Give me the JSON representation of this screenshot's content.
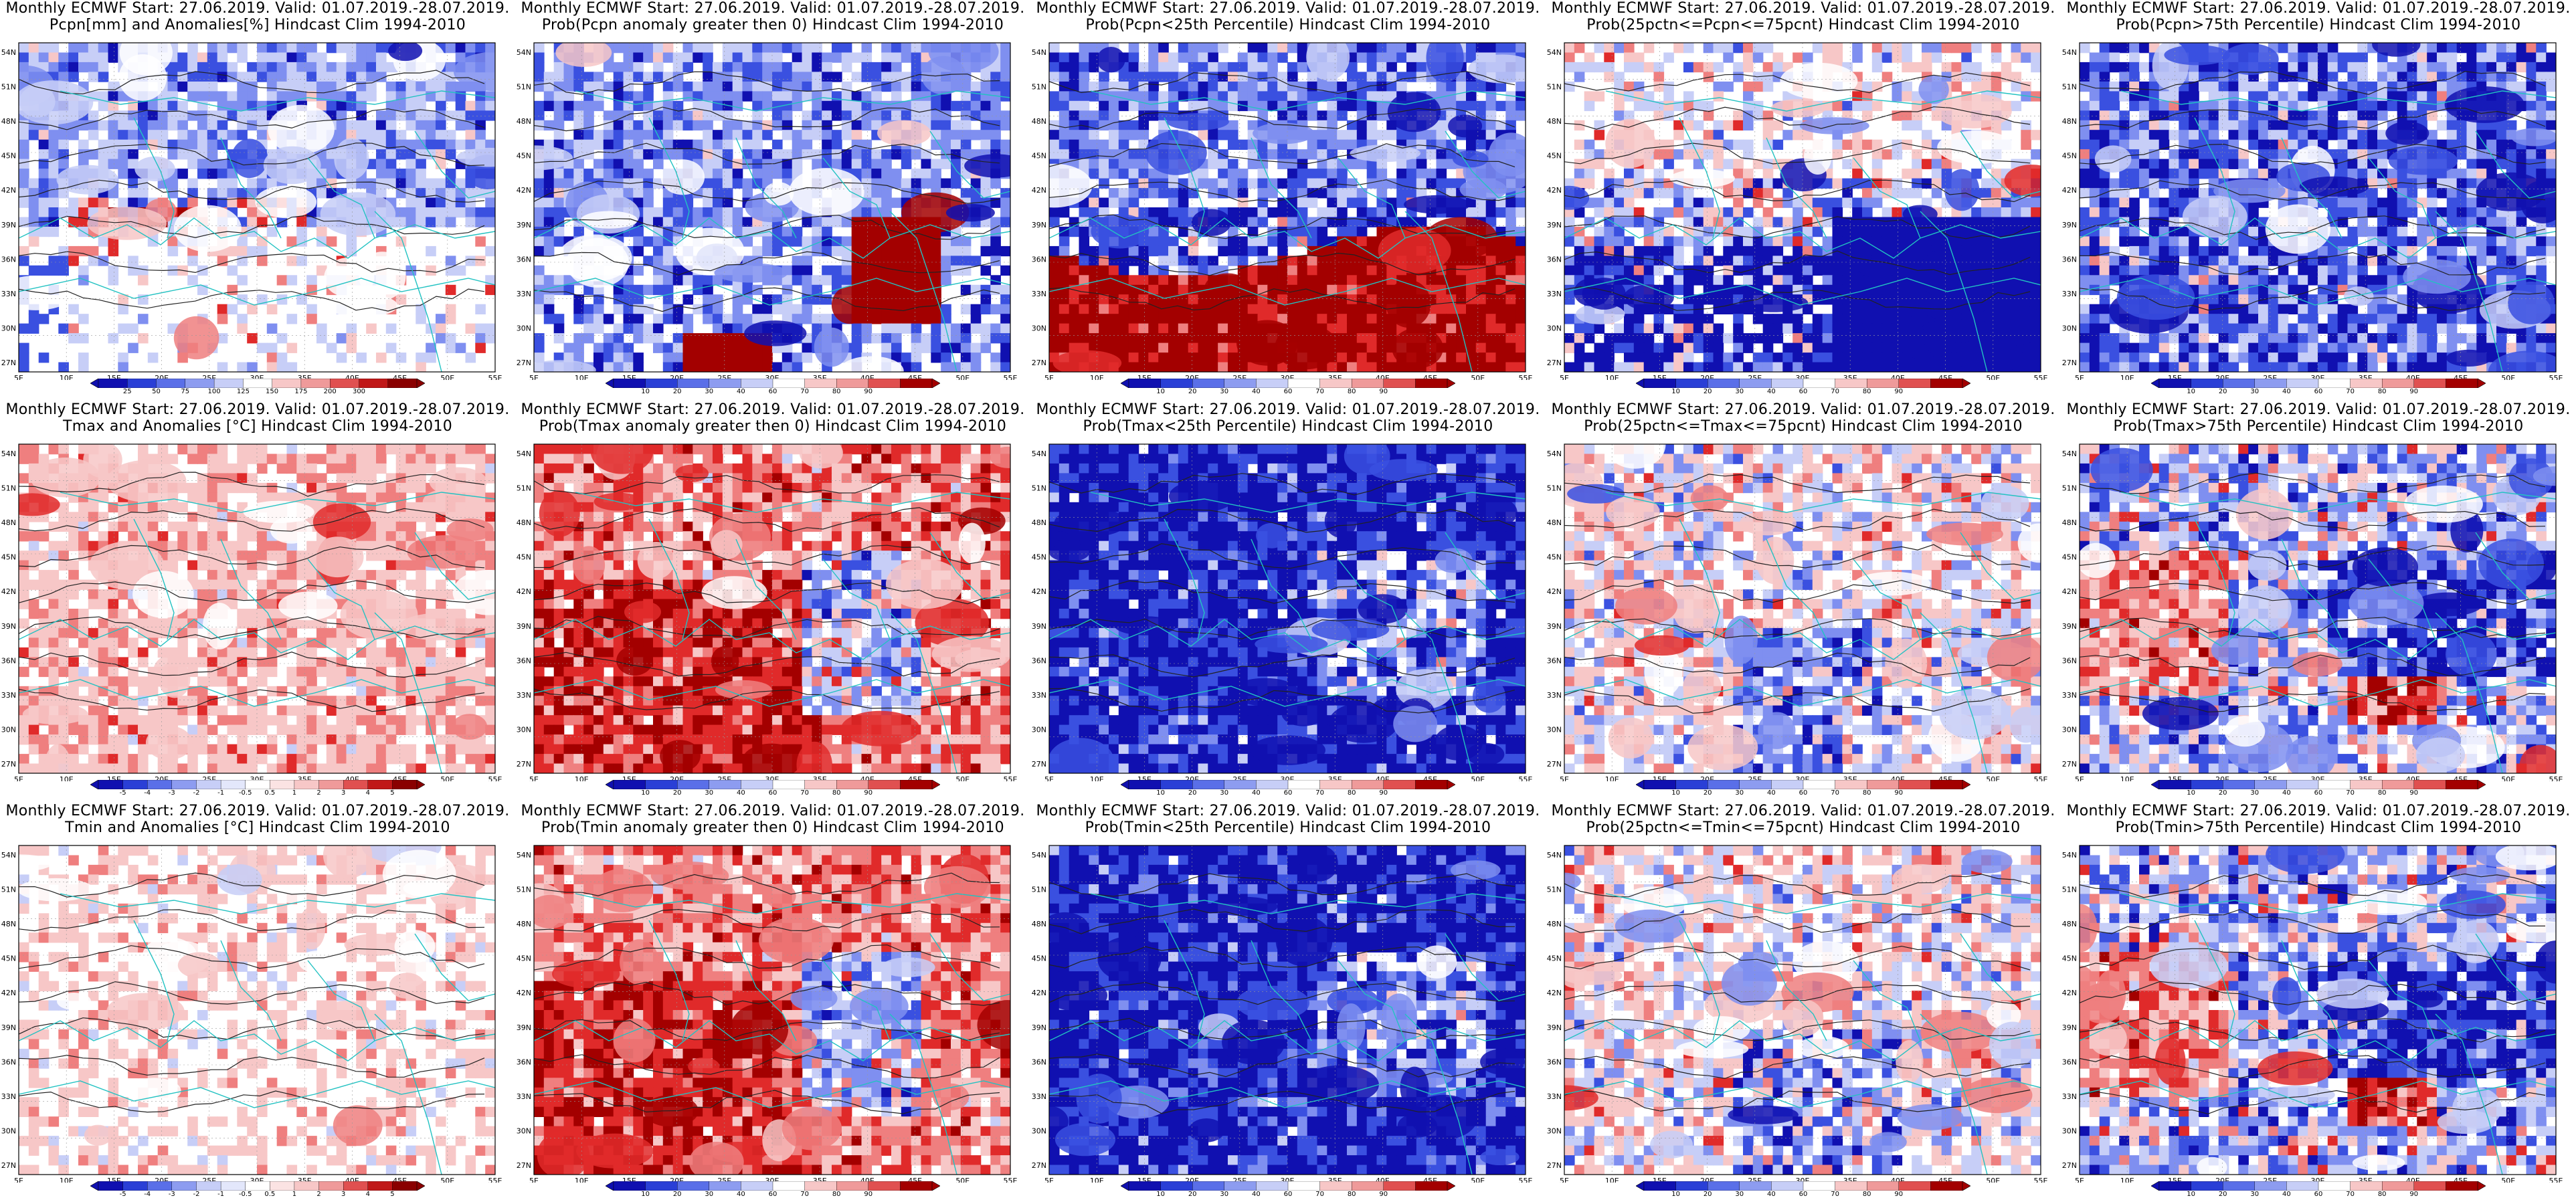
{
  "figure": {
    "columns": 5,
    "rows": 3,
    "lat_labels": [
      "54N",
      "51N",
      "48N",
      "45N",
      "42N",
      "39N",
      "36N",
      "33N",
      "30N",
      "27N"
    ],
    "lon_labels": [
      "5E",
      "10E",
      "15E",
      "20E",
      "25E",
      "30E",
      "35E",
      "40E",
      "45E",
      "50E",
      "55E"
    ],
    "colors": {
      "deep_blue": "#1010b0",
      "blue": "#3a50e0",
      "mid_blue": "#7f8ff0",
      "light_blue": "#c7cef7",
      "white": "#ffffff",
      "light_red": "#f7c7c7",
      "mid_red": "#ef7f7f",
      "red": "#e02a2a",
      "dark_red": "#a30000",
      "coast": "#22c2c2",
      "contour": "#222222"
    }
  },
  "panels": [
    {
      "title1": "Monthly ECMWF Start: 27.06.2019. Valid: 01.07.2019.-28.07.2019.",
      "title2": "Pcpn[mm] and Anomalies[%] Hindcast Clim 1994-2010",
      "colorbar": {
        "ticks": [
          "25",
          "50",
          "75",
          "100",
          "125",
          "150",
          "175",
          "200",
          "300"
        ],
        "colors": [
          "#1010b0",
          "#2a3fd6",
          "#5a6fe8",
          "#8d9cf0",
          "#c7cef7",
          "#ffffff",
          "#f7c7c7",
          "#ef9a9a",
          "#e05050",
          "#c01818",
          "#8a0000"
        ]
      },
      "pattern": "precip"
    },
    {
      "title1": "Monthly ECMWF Start: 27.06.2019. Valid: 01.07.2019.-28.07.2019.",
      "title2": "Prob(Pcpn anomaly greater then 0) Hindcast Clim 1994-2010",
      "colorbar": {
        "ticks": [
          "10",
          "20",
          "30",
          "40",
          "60",
          "70",
          "80",
          "90"
        ],
        "colors": [
          "#1010b0",
          "#2a3fd6",
          "#5a6fe8",
          "#8d9cf0",
          "#c7cef7",
          "#ffffff",
          "#f7c7c7",
          "#ef9a9a",
          "#e05050",
          "#a30000"
        ]
      },
      "pattern": "blue_dominant_redspot"
    },
    {
      "title1": "Monthly ECMWF Start: 27.06.2019. Valid: 01.07.2019.-28.07.2019.",
      "title2": "Prob(Pcpn<25th Percentile) Hindcast Clim 1994-2010",
      "colorbar": {
        "ticks": [
          "10",
          "20",
          "30",
          "40",
          "60",
          "70",
          "80",
          "90"
        ],
        "colors": [
          "#1010b0",
          "#2a3fd6",
          "#5a6fe8",
          "#8d9cf0",
          "#c7cef7",
          "#ffffff",
          "#f7c7c7",
          "#ef9a9a",
          "#e05050",
          "#a30000"
        ]
      },
      "pattern": "blue_top_red_bottom"
    },
    {
      "title1": "Monthly ECMWF Start: 27.06.2019. Valid: 01.07.2019.-28.07.2019.",
      "title2": "Prob(25pctn<=Pcpn<=75pcnt) Hindcast Clim 1994-2010",
      "colorbar": {
        "ticks": [
          "10",
          "20",
          "30",
          "40",
          "60",
          "70",
          "80",
          "90"
        ],
        "colors": [
          "#1010b0",
          "#2a3fd6",
          "#5a6fe8",
          "#8d9cf0",
          "#c7cef7",
          "#ffffff",
          "#f7c7c7",
          "#ef9a9a",
          "#e05050",
          "#a30000"
        ]
      },
      "pattern": "mixed_blue_bottom"
    },
    {
      "title1": "Monthly ECMWF Start: 27.06.2019. Valid: 01.07.2019.-28.07.2019.",
      "title2": "Prob(Pcpn>75th Percentile) Hindcast Clim 1994-2010",
      "colorbar": {
        "ticks": [
          "10",
          "20",
          "30",
          "40",
          "60",
          "70",
          "80",
          "90"
        ],
        "colors": [
          "#1010b0",
          "#2a3fd6",
          "#5a6fe8",
          "#8d9cf0",
          "#c7cef7",
          "#ffffff",
          "#f7c7c7",
          "#ef9a9a",
          "#e05050",
          "#a30000"
        ]
      },
      "pattern": "blue_dominant"
    },
    {
      "title1": "Monthly ECMWF Start: 27.06.2019. Valid: 01.07.2019.-28.07.2019.",
      "title2": "Tmax and Anomalies [°C] Hindcast Clim 1994-2010",
      "colorbar": {
        "ticks": [
          "-5",
          "-4",
          "-3",
          "-2",
          "-1",
          "-0.5",
          "0.5",
          "1",
          "2",
          "3",
          "4",
          "5"
        ],
        "colors": [
          "#1010b0",
          "#2a3fd6",
          "#5a6fe8",
          "#8d9cf0",
          "#c7cef7",
          "#e3e7fb",
          "#ffffff",
          "#fbe3e3",
          "#f7c7c7",
          "#ef9a9a",
          "#e05050",
          "#c01818",
          "#8a0000"
        ]
      },
      "pattern": "light_red"
    },
    {
      "title1": "Monthly ECMWF Start: 27.06.2019. Valid: 01.07.2019.-28.07.2019.",
      "title2": "Prob(Tmax anomaly greater then 0) Hindcast Clim 1994-2010",
      "colorbar": {
        "ticks": [
          "10",
          "20",
          "30",
          "40",
          "60",
          "70",
          "80",
          "90"
        ],
        "colors": [
          "#1010b0",
          "#2a3fd6",
          "#5a6fe8",
          "#8d9cf0",
          "#c7cef7",
          "#ffffff",
          "#f7c7c7",
          "#ef9a9a",
          "#e05050",
          "#a30000"
        ]
      },
      "pattern": "red_dominant"
    },
    {
      "title1": "Monthly ECMWF Start: 27.06.2019. Valid: 01.07.2019.-28.07.2019.",
      "title2": "Prob(Tmax<25th Percentile) Hindcast Clim 1994-2010",
      "colorbar": {
        "ticks": [
          "10",
          "20",
          "30",
          "40",
          "60",
          "70",
          "80",
          "90"
        ],
        "colors": [
          "#1010b0",
          "#2a3fd6",
          "#5a6fe8",
          "#8d9cf0",
          "#c7cef7",
          "#ffffff",
          "#f7c7c7",
          "#ef9a9a",
          "#e05050",
          "#a30000"
        ]
      },
      "pattern": "deep_blue"
    },
    {
      "title1": "Monthly ECMWF Start: 27.06.2019. Valid: 01.07.2019.-28.07.2019.",
      "title2": "Prob(25pctn<=Tmax<=75pcnt) Hindcast Clim 1994-2010",
      "colorbar": {
        "ticks": [
          "10",
          "20",
          "30",
          "40",
          "60",
          "70",
          "80",
          "90"
        ],
        "colors": [
          "#1010b0",
          "#2a3fd6",
          "#5a6fe8",
          "#8d9cf0",
          "#c7cef7",
          "#ffffff",
          "#f7c7c7",
          "#ef9a9a",
          "#e05050",
          "#a30000"
        ]
      },
      "pattern": "mixed"
    },
    {
      "title1": "Monthly ECMWF Start: 27.06.2019. Valid: 01.07.2019.-28.07.2019.",
      "title2": "Prob(Tmax>75th Percentile) Hindcast Clim 1994-2010",
      "colorbar": {
        "ticks": [
          "10",
          "20",
          "30",
          "40",
          "60",
          "70",
          "80",
          "90"
        ],
        "colors": [
          "#1010b0",
          "#2a3fd6",
          "#5a6fe8",
          "#8d9cf0",
          "#c7cef7",
          "#ffffff",
          "#f7c7c7",
          "#ef9a9a",
          "#e05050",
          "#a30000"
        ]
      },
      "pattern": "mixed_red_west"
    },
    {
      "title1": "Monthly ECMWF Start: 27.06.2019. Valid: 01.07.2019.-28.07.2019.",
      "title2": "Tmin and Anomalies [°C] Hindcast Clim 1994-2010",
      "colorbar": {
        "ticks": [
          "-5",
          "-4",
          "-3",
          "-2",
          "-1",
          "-0.5",
          "0.5",
          "1",
          "2",
          "3",
          "4",
          "5"
        ],
        "colors": [
          "#1010b0",
          "#2a3fd6",
          "#5a6fe8",
          "#8d9cf0",
          "#c7cef7",
          "#e3e7fb",
          "#ffffff",
          "#fbe3e3",
          "#f7c7c7",
          "#ef9a9a",
          "#e05050",
          "#c01818",
          "#8a0000"
        ]
      },
      "pattern": "very_light"
    },
    {
      "title1": "Monthly ECMWF Start: 27.06.2019. Valid: 01.07.2019.-28.07.2019.",
      "title2": "Prob(Tmin anomaly greater then 0) Hindcast Clim 1994-2010",
      "colorbar": {
        "ticks": [
          "10",
          "20",
          "30",
          "40",
          "60",
          "70",
          "80",
          "90"
        ],
        "colors": [
          "#1010b0",
          "#2a3fd6",
          "#5a6fe8",
          "#8d9cf0",
          "#c7cef7",
          "#ffffff",
          "#f7c7c7",
          "#ef9a9a",
          "#e05050",
          "#a30000"
        ]
      },
      "pattern": "red_dominant"
    },
    {
      "title1": "Monthly ECMWF Start: 27.06.2019. Valid: 01.07.2019.-28.07.2019.",
      "title2": "Prob(Tmin<25th Percentile) Hindcast Clim 1994-2010",
      "colorbar": {
        "ticks": [
          "10",
          "20",
          "30",
          "40",
          "60",
          "70",
          "80",
          "90"
        ],
        "colors": [
          "#1010b0",
          "#2a3fd6",
          "#5a6fe8",
          "#8d9cf0",
          "#c7cef7",
          "#ffffff",
          "#f7c7c7",
          "#ef9a9a",
          "#e05050",
          "#a30000"
        ]
      },
      "pattern": "deep_blue"
    },
    {
      "title1": "Monthly ECMWF Start: 27.06.2019. Valid: 01.07.2019.-28.07.2019.",
      "title2": "Prob(25pctn<=Tmin<=75pcnt) Hindcast Clim 1994-2010",
      "colorbar": {
        "ticks": [
          "10",
          "20",
          "30",
          "40",
          "60",
          "70",
          "80",
          "90"
        ],
        "colors": [
          "#1010b0",
          "#2a3fd6",
          "#5a6fe8",
          "#8d9cf0",
          "#c7cef7",
          "#ffffff",
          "#f7c7c7",
          "#ef9a9a",
          "#e05050",
          "#a30000"
        ]
      },
      "pattern": "mixed"
    },
    {
      "title1": "Monthly ECMWF Start: 27.06.2019. Valid: 01.07.2019.-28.07.2019.",
      "title2": "Prob(Tmin>75th Percentile) Hindcast Clim 1994-2010",
      "colorbar": {
        "ticks": [
          "10",
          "20",
          "30",
          "40",
          "60",
          "70",
          "80",
          "90"
        ],
        "colors": [
          "#1010b0",
          "#2a3fd6",
          "#5a6fe8",
          "#8d9cf0",
          "#c7cef7",
          "#ffffff",
          "#f7c7c7",
          "#ef9a9a",
          "#e05050",
          "#a30000"
        ]
      },
      "pattern": "mixed_red_west"
    }
  ]
}
